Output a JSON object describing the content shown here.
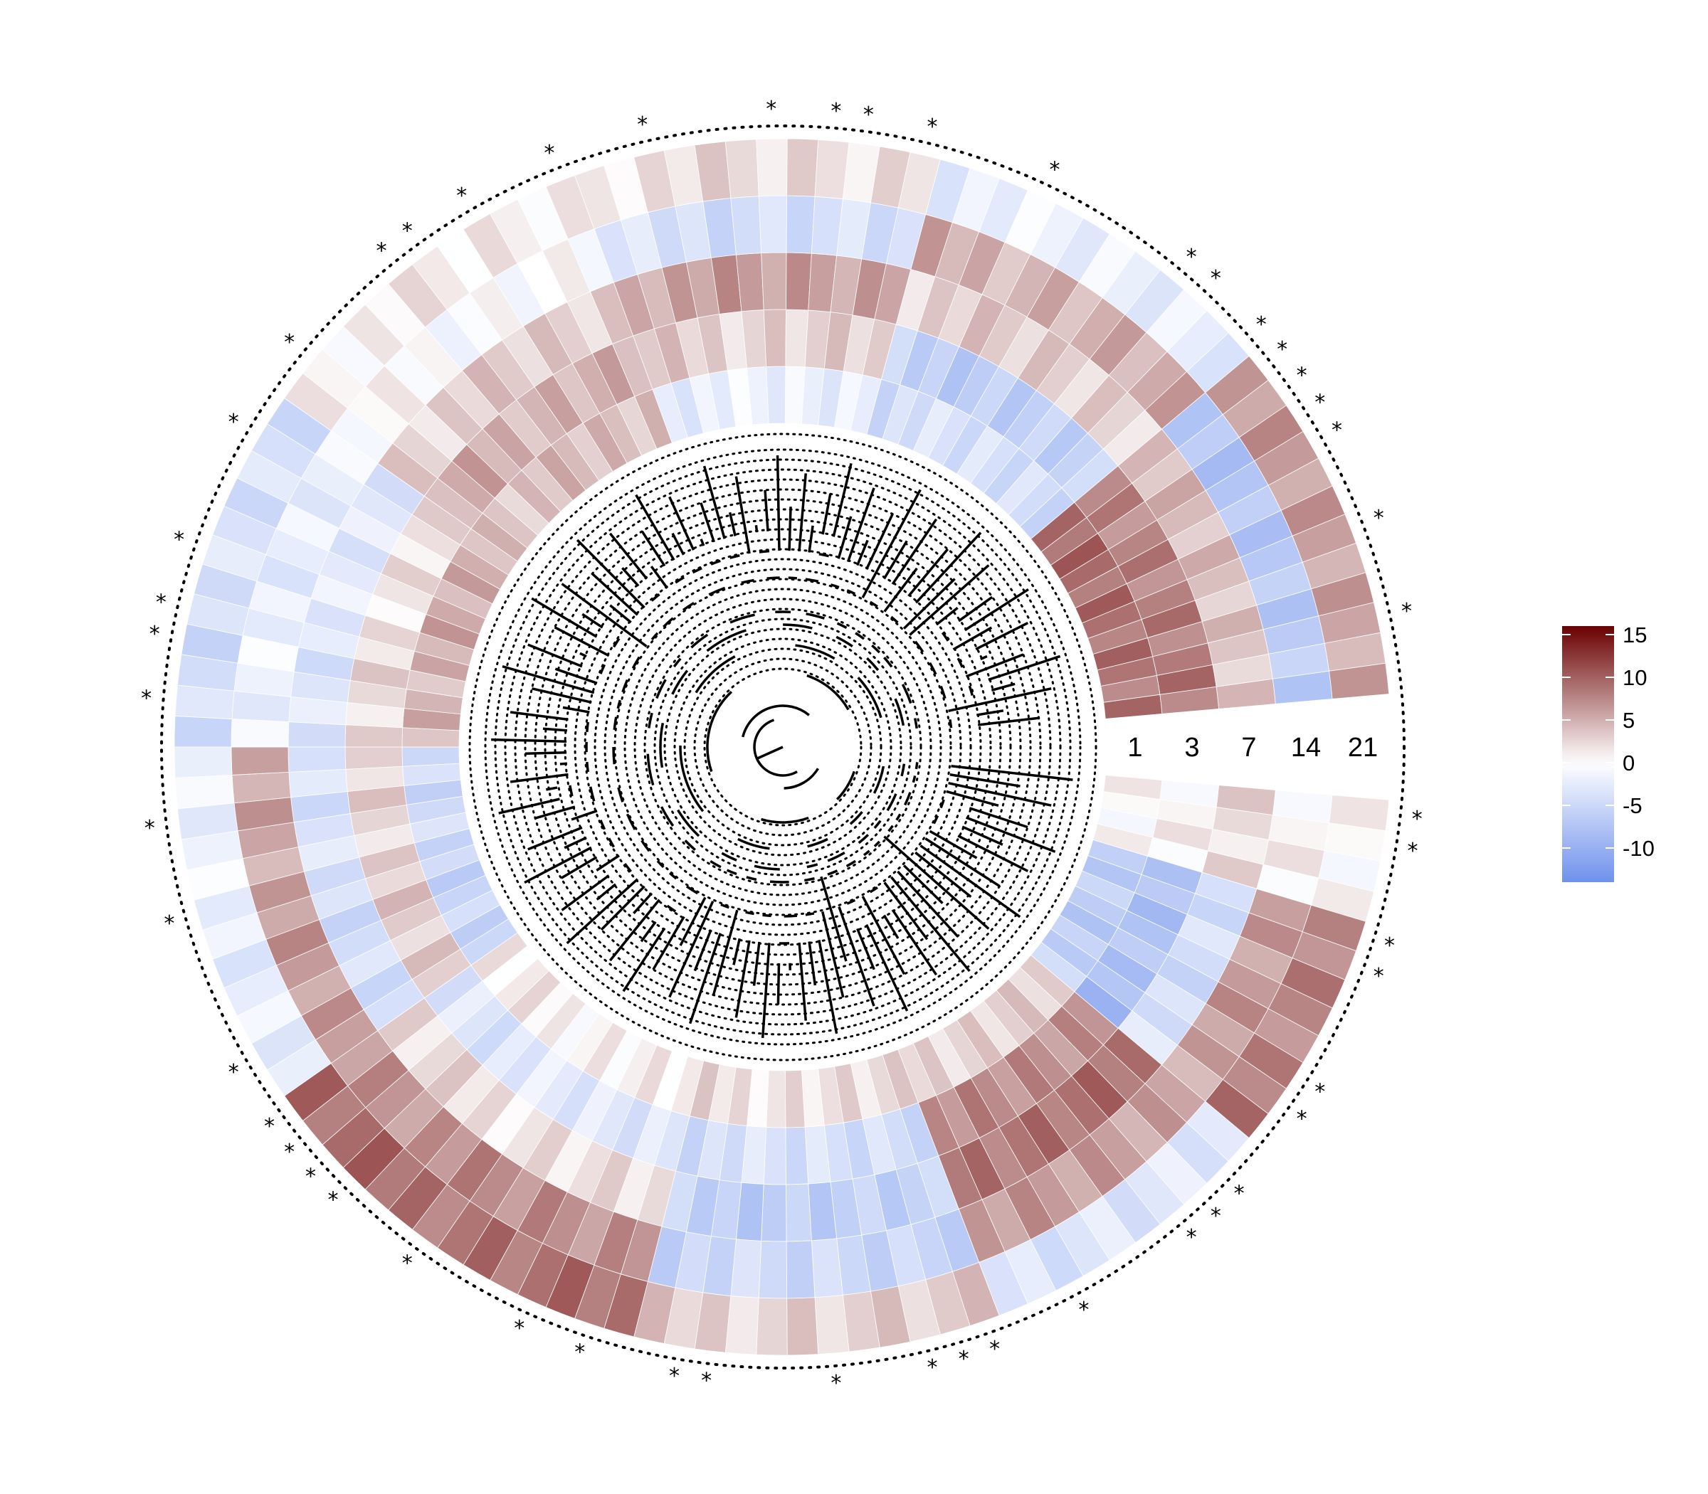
{
  "chart_data": {
    "type": "heatmap",
    "layout": "circular",
    "tree": "circular dendrogram at center",
    "ring_labels": [
      "1",
      "3",
      "7",
      "14",
      "21"
    ],
    "n_leaves": 120,
    "leaf_value_profile": [
      {
        "from_leaf": 0,
        "to_leaf": 4,
        "values": [
          0,
          1,
          2,
          1,
          0
        ]
      },
      {
        "from_leaf": 4,
        "to_leaf": 12,
        "values": [
          -6,
          -8,
          -4,
          6,
          8
        ]
      },
      {
        "from_leaf": 12,
        "to_leaf": 22,
        "values": [
          3,
          7,
          9,
          6,
          -3
        ]
      },
      {
        "from_leaf": 22,
        "to_leaf": 34,
        "values": [
          2,
          -4,
          -6,
          -5,
          3
        ]
      },
      {
        "from_leaf": 34,
        "to_leaf": 48,
        "values": [
          1,
          -3,
          2,
          7,
          9
        ]
      },
      {
        "from_leaf": 48,
        "to_leaf": 60,
        "values": [
          -5,
          3,
          -4,
          6,
          -2
        ]
      },
      {
        "from_leaf": 60,
        "to_leaf": 72,
        "values": [
          5,
          2,
          -3,
          -2,
          -4
        ]
      },
      {
        "from_leaf": 72,
        "to_leaf": 84,
        "values": [
          4,
          5,
          3,
          0,
          1
        ]
      },
      {
        "from_leaf": 84,
        "to_leaf": 96,
        "values": [
          -2,
          3,
          6,
          -4,
          2
        ]
      },
      {
        "from_leaf": 96,
        "to_leaf": 108,
        "values": [
          -4,
          -6,
          3,
          5,
          -2
        ]
      },
      {
        "from_leaf": 108,
        "to_leaf": 120,
        "values": [
          9,
          8,
          4,
          -7,
          6
        ]
      }
    ],
    "significant_leaves": [
      0,
      1,
      4,
      5,
      9,
      10,
      13,
      14,
      15,
      19,
      22,
      23,
      24,
      27,
      31,
      32,
      35,
      37,
      41,
      44,
      45,
      46,
      47,
      49,
      54,
      57,
      61,
      63,
      64,
      66,
      70,
      73,
      77,
      78,
      80,
      83,
      86,
      90,
      92,
      93,
      95,
      99,
      104,
      105,
      107,
      108,
      109,
      110,
      111,
      114,
      117
    ],
    "color_scale": {
      "min": -14,
      "max": 16,
      "low_color": "#6f91ec",
      "mid_color": "#ffffff",
      "high_color": "#6b0000",
      "ticks": [
        15,
        10,
        5,
        0,
        -5,
        -10
      ],
      "tick_labels": [
        "15",
        "10",
        "5",
        "0",
        "-5",
        "-10"
      ]
    },
    "significance_marker": "*",
    "legend_placement": "right"
  }
}
